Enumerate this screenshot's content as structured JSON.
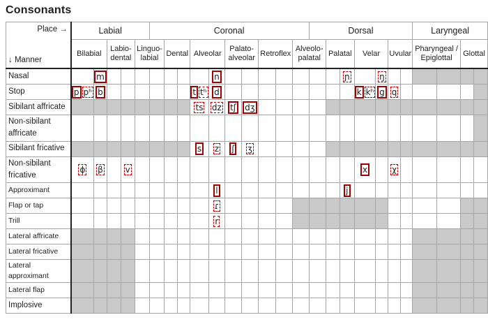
{
  "title": "Consonants",
  "corner": {
    "place": "Place →",
    "manner": "↓ Manner"
  },
  "groups": [
    {
      "label": "Labial",
      "span": 5
    },
    {
      "label": "Coronal",
      "span": 10
    },
    {
      "label": "Dorsal",
      "span": 7
    },
    {
      "label": "Laryngeal",
      "span": 4
    }
  ],
  "places": [
    {
      "label": "Bilabial"
    },
    {
      "label": "Labio-dental"
    },
    {
      "label": "Linguo-labial"
    },
    {
      "label": "Dental"
    },
    {
      "label": "Alveolar"
    },
    {
      "label": "Palato-alveolar"
    },
    {
      "label": "Retroflex"
    },
    {
      "label": "Alveolo-palatal"
    },
    {
      "label": "Palatal"
    },
    {
      "label": "Velar"
    },
    {
      "label": "Uvular"
    },
    {
      "label": "Pharyngeal / Epiglottal"
    },
    {
      "label": "Glottal"
    }
  ],
  "colors": {
    "gray_cell": "#c9c9c9",
    "grid_border": "#a6a6a6",
    "heavy_border": "#202122",
    "box_solid": "#a40000",
    "box_dashed": "#c00000",
    "text": "#202122"
  },
  "rows": [
    {
      "label": "Nasal",
      "small": false,
      "gray": [
        "11",
        "12"
      ],
      "symbols": [
        {
          "place": 0,
          "side": "R",
          "text": "m",
          "box": "solid"
        },
        {
          "place": 4,
          "side": "R",
          "text": "n",
          "box": "solid"
        },
        {
          "place": 8,
          "side": "R",
          "text": "ɲ",
          "box": "dashed"
        },
        {
          "place": 9,
          "side": "R",
          "text": "ŋ",
          "box": "dashed"
        }
      ]
    },
    {
      "label": "Stop",
      "small": false,
      "gray": [
        "12R"
      ],
      "symbols": [
        {
          "place": 0,
          "side": "L",
          "text": "p",
          "box": "solid"
        },
        {
          "place": 0,
          "side": "L",
          "text": "pʰ",
          "box": "dashed"
        },
        {
          "place": 0,
          "side": "R",
          "text": "b",
          "box": "solid"
        },
        {
          "place": 4,
          "side": "L",
          "text": "t",
          "box": "solid"
        },
        {
          "place": 4,
          "side": "L",
          "text": "tʰ",
          "box": "dashed"
        },
        {
          "place": 4,
          "side": "R",
          "text": "d",
          "box": "solid"
        },
        {
          "place": 9,
          "side": "L",
          "text": "k",
          "box": "solid"
        },
        {
          "place": 9,
          "side": "L",
          "text": "kʰ",
          "box": "dashed"
        },
        {
          "place": 9,
          "side": "R",
          "text": "g",
          "box": "solid"
        },
        {
          "place": 10,
          "side": "L",
          "text": "q",
          "box": "dashed"
        }
      ]
    },
    {
      "label": "Sibilant affricate",
      "small": false,
      "gray": [
        "0",
        "1",
        "2",
        "3",
        "8",
        "9",
        "10",
        "11",
        "12"
      ],
      "symbols": [
        {
          "place": 4,
          "side": "L",
          "text": "ts",
          "box": "dashed"
        },
        {
          "place": 4,
          "side": "R",
          "text": "dz",
          "box": "dashed"
        },
        {
          "place": 5,
          "side": "L",
          "text": "tʃ",
          "box": "solid"
        },
        {
          "place": 5,
          "side": "R",
          "text": "dʒ",
          "box": "solid"
        }
      ]
    },
    {
      "label": "Non-sibilant affricate",
      "small": false,
      "gray": [
        "12R"
      ],
      "symbols": []
    },
    {
      "label": "Sibilant fricative",
      "small": false,
      "gray": [
        "0",
        "1",
        "2",
        "3",
        "8",
        "9",
        "10",
        "11",
        "12"
      ],
      "symbols": [
        {
          "place": 4,
          "side": "L",
          "text": "s",
          "box": "solid"
        },
        {
          "place": 4,
          "side": "R",
          "text": "z",
          "box": "dashed"
        },
        {
          "place": 5,
          "side": "L",
          "text": "ʃ",
          "box": "solid"
        },
        {
          "place": 5,
          "side": "R",
          "text": "ʒ",
          "box": "dashed"
        }
      ]
    },
    {
      "label": "Non-sibilant fricative",
      "small": false,
      "gray": [],
      "symbols": [
        {
          "place": 0,
          "side": "L",
          "text": "ɸ",
          "box": "dashed"
        },
        {
          "place": 0,
          "side": "R",
          "text": "β",
          "box": "dashed"
        },
        {
          "place": 1,
          "side": "R",
          "text": "v",
          "box": "dashed"
        },
        {
          "place": 9,
          "side": "L",
          "text": "x",
          "box": "solid"
        },
        {
          "place": 10,
          "side": "L",
          "text": "χ",
          "box": "dashed"
        }
      ]
    },
    {
      "label": "Approximant",
      "small": true,
      "gray": [],
      "symbols": [
        {
          "place": 4,
          "side": "R",
          "text": "l",
          "box": "solid"
        },
        {
          "place": 8,
          "side": "R",
          "text": "j",
          "box": "solid"
        }
      ]
    },
    {
      "label": "Flap or tap",
      "small": true,
      "gray": [
        "7",
        "8",
        "9",
        "12"
      ],
      "symbols": [
        {
          "place": 4,
          "side": "R",
          "text": "ɾ",
          "box": "dashed"
        }
      ]
    },
    {
      "label": "Trill",
      "small": true,
      "gray": [
        "7",
        "8",
        "9",
        "12"
      ],
      "symbols": [
        {
          "place": 4,
          "side": "R",
          "text": "r",
          "box": "dashed"
        }
      ]
    },
    {
      "label": "Lateral affricate",
      "small": true,
      "gray": [
        "0",
        "1",
        "11",
        "12"
      ],
      "symbols": []
    },
    {
      "label": "Lateral fricative",
      "small": true,
      "gray": [
        "0",
        "1",
        "11",
        "12"
      ],
      "symbols": []
    },
    {
      "label": "Lateral approximant",
      "small": true,
      "gray": [
        "0",
        "1",
        "11",
        "12"
      ],
      "symbols": []
    },
    {
      "label": "Lateral flap",
      "small": true,
      "gray": [
        "0",
        "1",
        "11",
        "12"
      ],
      "symbols": []
    },
    {
      "label": "Implosive",
      "small": false,
      "gray": [
        "0",
        "1",
        "11",
        "12"
      ],
      "symbols": []
    }
  ]
}
